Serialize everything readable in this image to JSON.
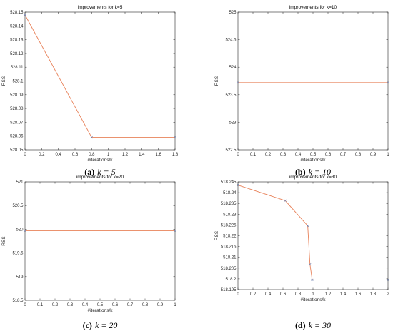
{
  "colors": {
    "line": "#e8825a",
    "marker": "#6b7fb0",
    "axis": "#262626"
  },
  "chart_data": [
    {
      "type": "line",
      "title": "improvements for k=5",
      "xlabel": "#iterations/k",
      "ylabel": "RSS",
      "xlim": [
        0,
        1.8
      ],
      "ylim": [
        528.05,
        528.15
      ],
      "xticks": [
        0,
        0.2,
        0.4,
        0.6,
        0.8,
        1,
        1.2,
        1.4,
        1.6,
        1.8
      ],
      "xtick_labels": [
        "0",
        "0.2",
        "0.4",
        "0.6",
        "0.8",
        "1",
        "1.2",
        "1.4",
        "1.6",
        "1.8"
      ],
      "yticks": [
        528.05,
        528.06,
        528.07,
        528.08,
        528.09,
        528.1,
        528.11,
        528.12,
        528.13,
        528.14,
        528.15
      ],
      "ytick_labels": [
        "528.05",
        "528.06",
        "528.07",
        "528.08",
        "528.09",
        "528.1",
        "528.11",
        "528.12",
        "528.13",
        "528.14",
        "528.15"
      ],
      "x": [
        0,
        0.8,
        1.8
      ],
      "y": [
        528.148,
        528.059,
        528.059
      ],
      "caption": {
        "label": "(a)",
        "math": "k = 5"
      }
    },
    {
      "type": "line",
      "title": "improvements for k=10",
      "xlabel": "#iterations/k",
      "ylabel": "RSS",
      "xlim": [
        0,
        1
      ],
      "ylim": [
        522.5,
        525
      ],
      "xticks": [
        0,
        0.1,
        0.2,
        0.3,
        0.4,
        0.5,
        0.6,
        0.7,
        0.8,
        0.9,
        1
      ],
      "xtick_labels": [
        "0",
        "0.1",
        "0.2",
        "0.3",
        "0.4",
        "0.5",
        "0.6",
        "0.7",
        "0.8",
        "0.9",
        "1"
      ],
      "yticks": [
        522.5,
        523,
        523.5,
        524,
        524.5,
        525
      ],
      "ytick_labels": [
        "522.5",
        "523",
        "523.5",
        "524",
        "524.5",
        "525"
      ],
      "x": [
        0,
        1
      ],
      "y": [
        523.72,
        523.72
      ],
      "caption": {
        "label": "(b)",
        "math": "k = 10"
      }
    },
    {
      "type": "line",
      "title": "improvements for k=20",
      "xlabel": "#iterations/k",
      "ylabel": "RSS",
      "xlim": [
        0,
        1
      ],
      "ylim": [
        518.5,
        521
      ],
      "xticks": [
        0,
        0.1,
        0.2,
        0.3,
        0.4,
        0.5,
        0.6,
        0.7,
        0.8,
        0.9,
        1
      ],
      "xtick_labels": [
        "0",
        "0.1",
        "0.2",
        "0.3",
        "0.4",
        "0.5",
        "0.6",
        "0.7",
        "0.8",
        "0.9",
        "1"
      ],
      "yticks": [
        518.5,
        519,
        519.5,
        520,
        520.5,
        521
      ],
      "ytick_labels": [
        "518.5",
        "519",
        "519.5",
        "520",
        "520.5",
        "521"
      ],
      "x": [
        0,
        1
      ],
      "y": [
        519.97,
        519.97
      ],
      "caption": {
        "label": "(c)",
        "math": "k = 20"
      }
    },
    {
      "type": "line",
      "title": "improvements for k=30",
      "xlabel": "#iterations/k",
      "ylabel": "RSS",
      "xlim": [
        0,
        2
      ],
      "ylim": [
        518.195,
        518.245
      ],
      "xticks": [
        0,
        0.2,
        0.4,
        0.6,
        0.8,
        1,
        1.2,
        1.4,
        1.6,
        1.8,
        2
      ],
      "xtick_labels": [
        "0",
        "0.2",
        "0.4",
        "0.6",
        "0.8",
        "1",
        "1.2",
        "1.4",
        "1.6",
        "1.8",
        "2"
      ],
      "yticks": [
        518.195,
        518.2,
        518.205,
        518.21,
        518.215,
        518.22,
        518.225,
        518.23,
        518.235,
        518.24,
        518.245
      ],
      "ytick_labels": [
        "518.195",
        "518.2",
        "518.205",
        "518.21",
        "518.215",
        "518.22",
        "518.225",
        "518.23",
        "518.235",
        "518.24",
        "518.245"
      ],
      "x": [
        0,
        0.63,
        0.93,
        0.96,
        0.99,
        2
      ],
      "y": [
        518.2435,
        518.2363,
        518.2246,
        518.2067,
        518.1995,
        518.1995
      ],
      "caption": {
        "label": "(d)",
        "math": "k = 30"
      }
    }
  ]
}
